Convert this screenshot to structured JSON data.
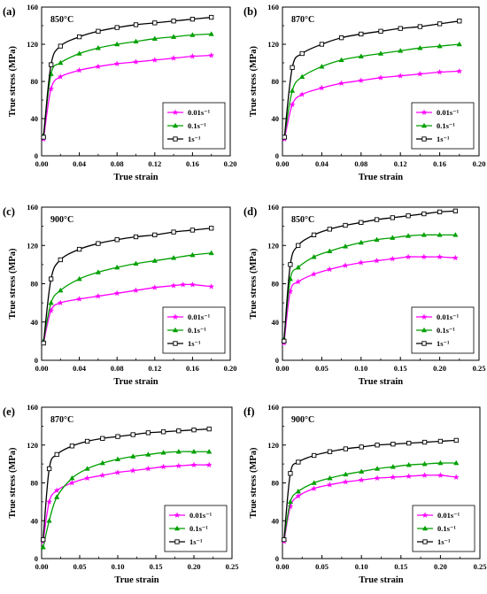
{
  "chart_data": [
    {
      "type": "line",
      "panel_label": "(a)",
      "temperature_label": "850°C",
      "xlabel": "True strain",
      "ylabel": "True stress (MPa)",
      "xlim": [
        0,
        0.2
      ],
      "ylim": [
        0,
        160
      ],
      "xticks": [
        "0.00",
        "0.04",
        "0.08",
        "0.12",
        "0.16",
        "0.20"
      ],
      "yticks": [
        "0",
        "40",
        "80",
        "120",
        "160"
      ],
      "legend_position": "bottom-right",
      "series": [
        {
          "name": "0.01s⁻¹",
          "color": "#ff00ff",
          "marker": "star",
          "x": [
            0.002,
            0.01,
            0.02,
            0.04,
            0.06,
            0.08,
            0.1,
            0.12,
            0.14,
            0.16,
            0.18
          ],
          "y": [
            18,
            72,
            85,
            92,
            96,
            99,
            101,
            103,
            105,
            107,
            108
          ]
        },
        {
          "name": "0.1s⁻¹",
          "color": "#00a000",
          "marker": "triangle",
          "x": [
            0.002,
            0.01,
            0.02,
            0.04,
            0.06,
            0.08,
            0.1,
            0.12,
            0.14,
            0.16,
            0.18
          ],
          "y": [
            22,
            88,
            100,
            110,
            116,
            120,
            123,
            126,
            128,
            130,
            131
          ]
        },
        {
          "name": "1s⁻¹",
          "color": "#000000",
          "marker": "square",
          "x": [
            0.002,
            0.01,
            0.02,
            0.04,
            0.06,
            0.08,
            0.1,
            0.12,
            0.14,
            0.16,
            0.18
          ],
          "y": [
            20,
            98,
            118,
            128,
            134,
            138,
            141,
            143,
            145,
            147,
            149
          ]
        }
      ]
    },
    {
      "type": "line",
      "panel_label": "(b)",
      "temperature_label": "870°C",
      "xlabel": "True strain",
      "ylabel": "True stress (MPa)",
      "xlim": [
        0,
        0.2
      ],
      "ylim": [
        0,
        160
      ],
      "xticks": [
        "0.00",
        "0.04",
        "0.08",
        "0.12",
        "0.16",
        "0.20"
      ],
      "yticks": [
        "0",
        "40",
        "80",
        "120",
        "160"
      ],
      "legend_position": "bottom-right",
      "series": [
        {
          "name": "0.01s⁻¹",
          "color": "#ff00ff",
          "marker": "star",
          "x": [
            0.002,
            0.01,
            0.02,
            0.04,
            0.06,
            0.08,
            0.1,
            0.12,
            0.14,
            0.16,
            0.18
          ],
          "y": [
            18,
            55,
            66,
            73,
            78,
            81,
            84,
            86,
            88,
            90,
            91
          ]
        },
        {
          "name": "0.1s⁻¹",
          "color": "#00a000",
          "marker": "triangle",
          "x": [
            0.002,
            0.01,
            0.02,
            0.04,
            0.06,
            0.08,
            0.1,
            0.12,
            0.14,
            0.16,
            0.18
          ],
          "y": [
            20,
            70,
            85,
            96,
            103,
            107,
            110,
            113,
            116,
            118,
            120
          ]
        },
        {
          "name": "1s⁻¹",
          "color": "#000000",
          "marker": "square",
          "x": [
            0.002,
            0.01,
            0.02,
            0.04,
            0.06,
            0.08,
            0.1,
            0.12,
            0.14,
            0.16,
            0.18
          ],
          "y": [
            20,
            95,
            110,
            120,
            127,
            131,
            134,
            137,
            139,
            142,
            145
          ]
        }
      ]
    },
    {
      "type": "line",
      "panel_label": "(c)",
      "temperature_label": "900°C",
      "xlabel": "True strain",
      "ylabel": "True stress (MPa)",
      "xlim": [
        0,
        0.2
      ],
      "ylim": [
        0,
        160
      ],
      "xticks": [
        "0.00",
        "0.04",
        "0.08",
        "0.12",
        "0.16",
        "0.20"
      ],
      "yticks": [
        "0",
        "40",
        "80",
        "120",
        "160"
      ],
      "legend_position": "bottom-right",
      "series": [
        {
          "name": "0.01s⁻¹",
          "color": "#ff00ff",
          "marker": "star",
          "x": [
            0.002,
            0.01,
            0.02,
            0.04,
            0.06,
            0.08,
            0.1,
            0.12,
            0.14,
            0.15,
            0.16,
            0.18
          ],
          "y": [
            18,
            52,
            60,
            64,
            67,
            70,
            73,
            76,
            78,
            79,
            79,
            77
          ]
        },
        {
          "name": "0.1s⁻¹",
          "color": "#00a000",
          "marker": "triangle",
          "x": [
            0.002,
            0.01,
            0.02,
            0.04,
            0.06,
            0.08,
            0.1,
            0.12,
            0.14,
            0.16,
            0.18
          ],
          "y": [
            20,
            60,
            73,
            85,
            92,
            97,
            101,
            104,
            107,
            110,
            112
          ]
        },
        {
          "name": "1s⁻¹",
          "color": "#000000",
          "marker": "square",
          "x": [
            0.002,
            0.01,
            0.02,
            0.04,
            0.06,
            0.08,
            0.1,
            0.12,
            0.14,
            0.16,
            0.18
          ],
          "y": [
            18,
            85,
            105,
            116,
            122,
            126,
            129,
            131,
            134,
            136,
            138
          ]
        }
      ]
    },
    {
      "type": "line",
      "panel_label": "(d)",
      "temperature_label": "850°C",
      "xlabel": "True strain",
      "ylabel": "True stress (MPa)",
      "xlim": [
        0,
        0.25
      ],
      "ylim": [
        0,
        160
      ],
      "xticks": [
        "0.00",
        "0.05",
        "0.10",
        "0.15",
        "0.20",
        "0.25"
      ],
      "yticks": [
        "0",
        "40",
        "80",
        "120",
        "160"
      ],
      "legend_position": "bottom-right",
      "series": [
        {
          "name": "0.01s⁻¹",
          "color": "#ff00ff",
          "marker": "star",
          "x": [
            0.002,
            0.01,
            0.02,
            0.04,
            0.06,
            0.08,
            0.1,
            0.12,
            0.14,
            0.16,
            0.18,
            0.2,
            0.22
          ],
          "y": [
            18,
            72,
            82,
            90,
            95,
            99,
            102,
            104,
            106,
            108,
            108,
            108,
            107
          ]
        },
        {
          "name": "0.1s⁻¹",
          "color": "#00a000",
          "marker": "triangle",
          "x": [
            0.002,
            0.01,
            0.02,
            0.04,
            0.06,
            0.08,
            0.1,
            0.12,
            0.14,
            0.16,
            0.18,
            0.2,
            0.22
          ],
          "y": [
            22,
            85,
            97,
            108,
            114,
            119,
            123,
            126,
            128,
            130,
            131,
            131,
            131
          ]
        },
        {
          "name": "1s⁻¹",
          "color": "#000000",
          "marker": "square",
          "x": [
            0.002,
            0.01,
            0.02,
            0.04,
            0.06,
            0.08,
            0.1,
            0.12,
            0.14,
            0.16,
            0.18,
            0.2,
            0.22
          ],
          "y": [
            20,
            100,
            120,
            131,
            137,
            141,
            144,
            147,
            149,
            151,
            153,
            155,
            156
          ]
        }
      ]
    },
    {
      "type": "line",
      "panel_label": "(e)",
      "temperature_label": "870°C",
      "xlabel": "True strain",
      "ylabel": "True stress (MPa)",
      "xlim": [
        0,
        0.25
      ],
      "ylim": [
        0,
        160
      ],
      "xticks": [
        "0.00",
        "0.05",
        "0.10",
        "0.15",
        "0.20",
        "0.25"
      ],
      "yticks": [
        "0",
        "40",
        "80",
        "120",
        "160"
      ],
      "legend_position": "bottom-right",
      "series": [
        {
          "name": "0.01s⁻¹",
          "color": "#ff00ff",
          "marker": "star",
          "x": [
            0.002,
            0.01,
            0.02,
            0.04,
            0.06,
            0.08,
            0.1,
            0.12,
            0.14,
            0.16,
            0.18,
            0.2,
            0.22
          ],
          "y": [
            18,
            60,
            72,
            80,
            85,
            88,
            91,
            93,
            95,
            97,
            98,
            99,
            99
          ]
        },
        {
          "name": "0.1s⁻¹",
          "color": "#00a000",
          "marker": "triangle",
          "x": [
            0.002,
            0.01,
            0.02,
            0.04,
            0.06,
            0.08,
            0.1,
            0.12,
            0.14,
            0.16,
            0.18,
            0.2,
            0.22
          ],
          "y": [
            12,
            40,
            65,
            85,
            95,
            101,
            105,
            108,
            110,
            112,
            113,
            113,
            113
          ]
        },
        {
          "name": "1s⁻¹",
          "color": "#000000",
          "marker": "square",
          "x": [
            0.002,
            0.01,
            0.02,
            0.04,
            0.06,
            0.08,
            0.1,
            0.12,
            0.14,
            0.16,
            0.18,
            0.2,
            0.22
          ],
          "y": [
            20,
            95,
            110,
            119,
            124,
            127,
            129,
            131,
            133,
            134,
            135,
            136,
            137
          ]
        }
      ]
    },
    {
      "type": "line",
      "panel_label": "(f)",
      "temperature_label": "900°C",
      "xlabel": "True strain",
      "ylabel": "True stress (MPa)",
      "xlim": [
        0,
        0.25
      ],
      "ylim": [
        0,
        160
      ],
      "xticks": [
        "0.00",
        "0.05",
        "0.10",
        "0.15",
        "0.20",
        "0.25"
      ],
      "yticks": [
        "0",
        "40",
        "80",
        "120",
        "160"
      ],
      "legend_position": "bottom-right",
      "series": [
        {
          "name": "0.01s⁻¹",
          "color": "#ff00ff",
          "marker": "star",
          "x": [
            0.002,
            0.01,
            0.02,
            0.04,
            0.06,
            0.08,
            0.1,
            0.12,
            0.14,
            0.16,
            0.18,
            0.2,
            0.22
          ],
          "y": [
            18,
            55,
            66,
            74,
            78,
            81,
            83,
            85,
            86,
            87,
            88,
            88,
            86
          ]
        },
        {
          "name": "0.1s⁻¹",
          "color": "#00a000",
          "marker": "triangle",
          "x": [
            0.002,
            0.01,
            0.02,
            0.04,
            0.06,
            0.08,
            0.1,
            0.12,
            0.14,
            0.16,
            0.18,
            0.2,
            0.22
          ],
          "y": [
            20,
            60,
            71,
            80,
            85,
            89,
            92,
            95,
            97,
            99,
            100,
            101,
            101
          ]
        },
        {
          "name": "1s⁻¹",
          "color": "#000000",
          "marker": "square",
          "x": [
            0.002,
            0.01,
            0.02,
            0.04,
            0.06,
            0.08,
            0.1,
            0.12,
            0.14,
            0.16,
            0.18,
            0.2,
            0.22
          ],
          "y": [
            20,
            90,
            102,
            109,
            113,
            116,
            118,
            120,
            121,
            122,
            123,
            124,
            125
          ]
        }
      ]
    }
  ]
}
